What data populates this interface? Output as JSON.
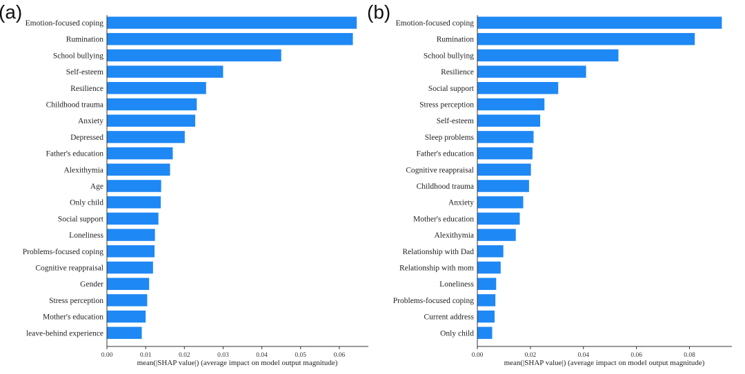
{
  "colors": {
    "bar": "#1e88f5",
    "axis": "#333333"
  },
  "chart_data": [
    {
      "type": "bar",
      "orientation": "horizontal",
      "panel": "(a)",
      "categories": [
        "Emotion-focused coping",
        "Rumination",
        "School bullying",
        "Self-esteem",
        "Resilience",
        "Childhood trauma",
        "Anxiety",
        "Depressed",
        "Father's education",
        "Alexithymia",
        "Age",
        "Only child",
        "Social support",
        "Loneliness",
        "Problems-focused coping",
        "Cognitive reappraisal",
        "Gender",
        "Stress perception",
        "Mother's education",
        "leave-behind experience"
      ],
      "values": [
        0.0645,
        0.0635,
        0.045,
        0.03,
        0.0256,
        0.0232,
        0.0228,
        0.0201,
        0.017,
        0.0163,
        0.014,
        0.0139,
        0.0133,
        0.0124,
        0.0123,
        0.0119,
        0.0109,
        0.0104,
        0.01,
        0.009
      ],
      "xlabel": "mean(|SHAP value|) (average impact on model output magnitude)",
      "xlim": [
        0,
        0.0675
      ],
      "xticks": [
        0.0,
        0.01,
        0.02,
        0.03,
        0.04,
        0.05,
        0.06
      ],
      "xtick_labels": [
        "0.00",
        "0.01",
        "0.02",
        "0.03",
        "0.04",
        "0.05",
        "0.06"
      ],
      "grid": false
    },
    {
      "type": "bar",
      "orientation": "horizontal",
      "panel": "(b)",
      "categories": [
        "Emotion-focused coping",
        "Rumination",
        "School bullying",
        "Resilience",
        "Social support",
        "Stress perception",
        "Self-esteem",
        "Sleep problems",
        "Father's education",
        "Cognitive reappraisal",
        "Childhood trauma",
        "Anxiety",
        "Mother's education",
        "Alexithymia",
        "Relationship with Dad",
        "Relationship with mom",
        "Loneliness",
        "Problems-focused coping",
        "Current address",
        "Only child"
      ],
      "values": [
        0.0922,
        0.082,
        0.0532,
        0.041,
        0.0305,
        0.0253,
        0.0237,
        0.0212,
        0.0208,
        0.0202,
        0.0195,
        0.0173,
        0.016,
        0.0145,
        0.0098,
        0.0088,
        0.0071,
        0.0068,
        0.0065,
        0.0056
      ],
      "xlabel": "mean(|SHAP value|) (average impact on model output magnitude)",
      "xlim": [
        0,
        0.096
      ],
      "xticks": [
        0.0,
        0.02,
        0.04,
        0.06,
        0.08
      ],
      "xtick_labels": [
        "0.00",
        "0.02",
        "0.04",
        "0.06",
        "0.08"
      ],
      "grid": false
    }
  ]
}
